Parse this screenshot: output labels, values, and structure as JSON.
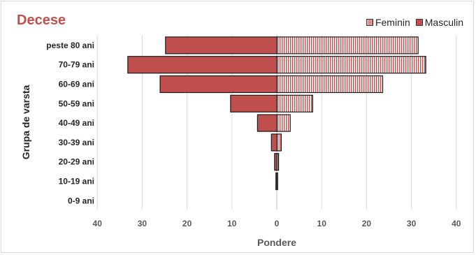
{
  "chart_data": {
    "type": "bar",
    "orientation": "horizontal-population-pyramid",
    "title": "Decese",
    "xlabel": "Pondere",
    "ylabel": "Grupa de varsta",
    "categories": [
      "peste 80 ani",
      "70-79 ani",
      "60-69 ani",
      "50-59 ani",
      "40-49 ani",
      "30-39 ani",
      "20-29 ani",
      "10-19 ani",
      "0-9 ani"
    ],
    "series": [
      {
        "name": "Feminin",
        "side": "right",
        "color": "#c0504d",
        "pattern": "vertical-stripes",
        "values": [
          31.5,
          33.2,
          23.6,
          8.0,
          3.0,
          1.0,
          0.4,
          0.2,
          0.0
        ]
      },
      {
        "name": "Masculin",
        "side": "left",
        "color": "#c0504d",
        "pattern": "solid",
        "values": [
          24.8,
          33.2,
          26.0,
          10.3,
          4.3,
          1.2,
          0.5,
          0.2,
          0.0
        ]
      }
    ],
    "xticks": [
      "40",
      "30",
      "20",
      "10",
      "0",
      "10",
      "20",
      "30",
      "40"
    ],
    "xlim": [
      -40,
      40
    ],
    "grid": "vertical",
    "legend_position": "top-right"
  }
}
